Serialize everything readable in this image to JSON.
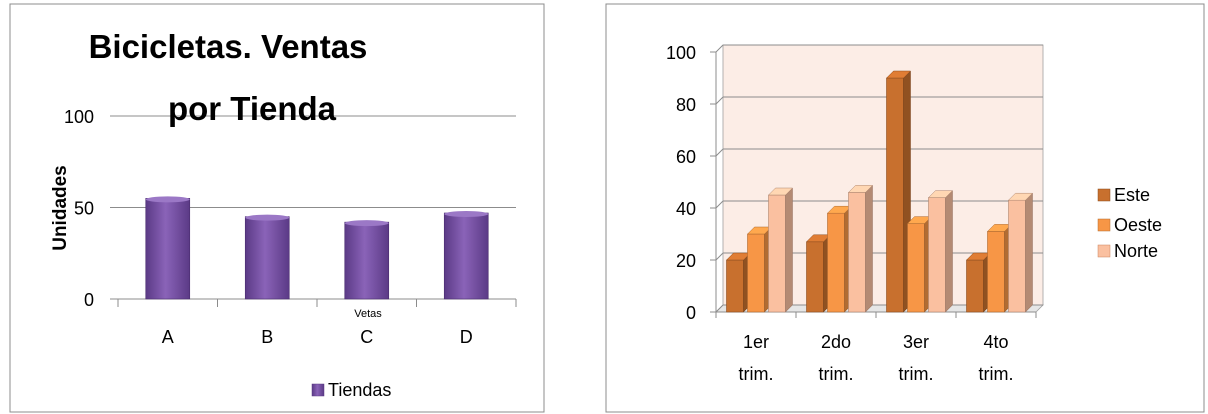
{
  "chart_data": [
    {
      "type": "bar",
      "title": "Bicicletas. Ventas por Tienda",
      "title_lines": [
        "Bicicletas. Ventas",
        "por Tienda"
      ],
      "ylabel": "Unidades",
      "xlabel": "Vetas",
      "categories": [
        "A",
        "B",
        "C",
        "D"
      ],
      "yticks": [
        "0",
        "50",
        "100"
      ],
      "ylim": [
        0,
        100
      ],
      "series": [
        {
          "name": "Tiendas",
          "values": [
            55,
            45,
            42,
            47
          ],
          "color": "#7B4EA8"
        }
      ],
      "grid": true,
      "legend": "bottom"
    },
    {
      "type": "bar",
      "categories": [
        [
          "1er",
          "trim."
        ],
        [
          "2do",
          "trim."
        ],
        [
          "3er",
          "trim."
        ],
        [
          "4to",
          "trim."
        ]
      ],
      "yticks": [
        "0",
        "20",
        "40",
        "60",
        "80",
        "100"
      ],
      "ylim": [
        0,
        100
      ],
      "series": [
        {
          "name": "Este",
          "values": [
            20,
            27,
            90,
            20
          ],
          "color": "#C8702E"
        },
        {
          "name": "Oeste",
          "values": [
            30,
            38,
            34,
            31
          ],
          "color": "#F79646"
        },
        {
          "name": "Norte",
          "values": [
            45,
            46,
            44,
            43
          ],
          "color": "#FAC0A0"
        }
      ],
      "grid": true,
      "plot_background": "#FCEDE6",
      "legend": "right"
    }
  ]
}
